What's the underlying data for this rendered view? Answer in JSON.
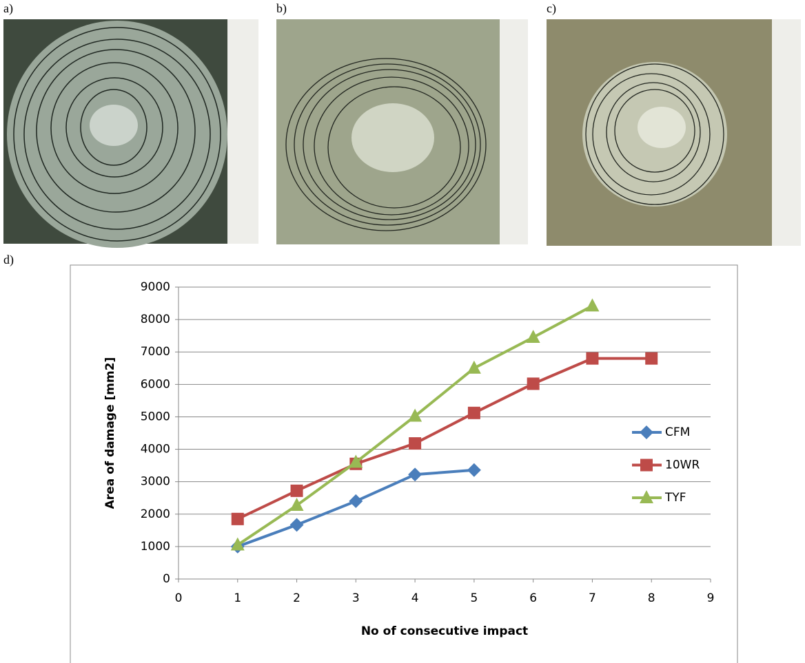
{
  "panel_labels": [
    "a)",
    "b)",
    "c)",
    "d)"
  ],
  "chart_data": {
    "type": "line",
    "xlabel": "No of consecutive impact",
    "ylabel": "Area of damage [mm2]",
    "xlim": [
      0,
      9
    ],
    "xticks": [
      0,
      1,
      2,
      3,
      4,
      5,
      6,
      7,
      8,
      9
    ],
    "ylim": [
      0,
      9000
    ],
    "yticks": [
      0,
      1000,
      2000,
      3000,
      4000,
      5000,
      6000,
      7000,
      8000,
      9000
    ],
    "grid": true,
    "legend_position": "right",
    "series": [
      {
        "name": "CFM",
        "color": "#4a7ebb",
        "marker": "diamond",
        "x": [
          1,
          2,
          3,
          4,
          5
        ],
        "values": [
          1000,
          1670,
          2400,
          3220,
          3360
        ]
      },
      {
        "name": "10WR",
        "color": "#be4b48",
        "marker": "square",
        "x": [
          1,
          2,
          3,
          4,
          5,
          6,
          7,
          8
        ],
        "values": [
          1850,
          2720,
          3550,
          4180,
          5120,
          6020,
          6800,
          6800
        ]
      },
      {
        "name": "TYF",
        "color": "#98b954",
        "marker": "triangle",
        "x": [
          1,
          2,
          3,
          4,
          5,
          6,
          7
        ],
        "values": [
          1050,
          2270,
          3600,
          5020,
          6500,
          7450,
          8420
        ]
      }
    ]
  }
}
